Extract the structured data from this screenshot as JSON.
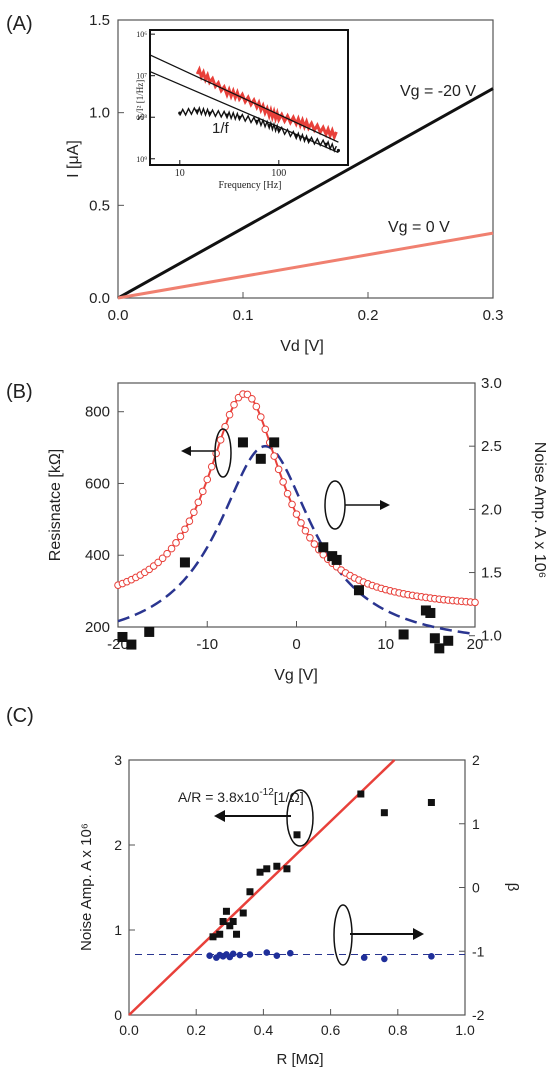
{
  "colors": {
    "black": "#111111",
    "red": "#e8403a",
    "lightred": "#f08070",
    "blue": "#1f2f9a",
    "darkblue": "#2a3590"
  },
  "chart_data": [
    {
      "panel": "(A)",
      "type": "line",
      "xlabel": "Vd [V]",
      "ylabel": "I [μA]",
      "xlim": [
        0,
        0.3
      ],
      "ylim": [
        0,
        1.5
      ],
      "xticks": [
        "0.0",
        "0.1",
        "0.2",
        "0.3"
      ],
      "yticks": [
        "0.0",
        "0.5",
        "1.0",
        "1.5"
      ],
      "series": [
        {
          "name": "Vg = -20 V",
          "color": "black",
          "x": [
            0,
            0.3
          ],
          "y": [
            0,
            1.13
          ]
        },
        {
          "name": "Vg = 0 V",
          "color": "red",
          "x": [
            0,
            0.3
          ],
          "y": [
            0,
            0.35
          ]
        }
      ],
      "inset": {
        "type": "scatter",
        "xlabel": "Frequency [Hz]",
        "ylabel": "Sᵢ/I² [1/Hz]",
        "annotation": "1/f",
        "scale": "log-log",
        "xlim": [
          5,
          500
        ],
        "xticks": [
          "10",
          "100"
        ],
        "yticks": [
          "10⁶",
          "10⁷",
          "10⁸",
          "10⁹"
        ],
        "fit_lines": [
          {
            "x": [
              5,
              400
            ],
            "y": [
              -6.5,
              -8.6
            ]
          },
          {
            "x": [
              5,
              400
            ],
            "y": [
              -6.9,
              -8.85
            ]
          }
        ],
        "red_series": {
          "x": [
            15,
            20,
            30,
            40,
            60,
            80,
            100,
            150,
            200,
            300,
            400
          ],
          "y": [
            -6.9,
            -7.1,
            -7.4,
            -7.5,
            -7.7,
            -7.9,
            -8.0,
            -8.1,
            -8.2,
            -8.35,
            -8.45
          ]
        },
        "black_series": {
          "x": [
            10,
            15,
            20,
            30,
            40,
            60,
            80,
            100,
            150,
            200,
            300,
            400
          ],
          "y": [
            -7.9,
            -7.85,
            -7.9,
            -7.95,
            -8.0,
            -8.1,
            -8.2,
            -8.3,
            -8.45,
            -8.55,
            -8.65,
            -8.8
          ]
        }
      }
    },
    {
      "panel": "(B)",
      "type": "line",
      "xlabel": "Vg [V]",
      "ylabel": "Resisnatce [kΩ]",
      "y2label": "Noise Amp. A x 10⁶",
      "xlim": [
        -20,
        20
      ],
      "ylim": [
        200,
        880
      ],
      "y2lim": [
        0.8,
        3.0
      ],
      "xticks": [
        "-20",
        "-10",
        "0",
        "10",
        "20"
      ],
      "yticks": [
        "200",
        "400",
        "600",
        "800"
      ],
      "y2ticks": [
        "1.0",
        "1.5",
        "2.0",
        "2.5",
        "3.0"
      ],
      "resistance_peak": {
        "x0": -5.8,
        "peak": 850,
        "baseline": 245,
        "gamma": 5.2
      },
      "noise_fit_peak": {
        "x0": -3.5,
        "peak": 2.5,
        "baseline": 0.9,
        "gamma": 6.5
      },
      "noise_points": {
        "x": [
          -19.5,
          -18.5,
          -16.5,
          -12.5,
          -6,
          -4,
          -2.5,
          3,
          4,
          4.5,
          7,
          12,
          14.5,
          15,
          15.5,
          16,
          17
        ],
        "y": [
          0.99,
          0.93,
          1.03,
          1.58,
          2.53,
          2.4,
          2.53,
          1.7,
          1.63,
          1.6,
          1.36,
          1.01,
          1.2,
          1.18,
          0.98,
          0.9,
          0.96
        ]
      }
    },
    {
      "panel": "(C)",
      "type": "scatter",
      "xlabel": "R [MΩ]",
      "ylabel": "Noise Amp. A x 10⁶",
      "y2label": "β",
      "xlim": [
        0,
        1.0
      ],
      "ylim": [
        0,
        3
      ],
      "y2lim": [
        -2,
        2
      ],
      "xticks": [
        "0.0",
        "0.2",
        "0.4",
        "0.6",
        "0.8",
        "1.0"
      ],
      "yticks": [
        "0",
        "1",
        "2",
        "3"
      ],
      "y2ticks": [
        "-2",
        "-1",
        "0",
        "1",
        "2"
      ],
      "annotation_prefix": "A/R = 3.8x10",
      "annotation_exp": "-12",
      "annotation_suffix": "[1/Ω]",
      "fit_line": {
        "x": [
          0,
          0.79
        ],
        "y": [
          0,
          3.0
        ]
      },
      "beta_level": -1.05,
      "noise_points": {
        "x": [
          0.25,
          0.27,
          0.28,
          0.29,
          0.3,
          0.31,
          0.32,
          0.34,
          0.36,
          0.39,
          0.41,
          0.44,
          0.47,
          0.5,
          0.69,
          0.76,
          0.9
        ],
        "y": [
          0.92,
          0.95,
          1.1,
          1.22,
          1.05,
          1.1,
          0.95,
          1.2,
          1.45,
          1.68,
          1.72,
          1.75,
          1.72,
          2.12,
          2.6,
          2.38,
          2.5
        ]
      },
      "beta_points": {
        "x": [
          0.24,
          0.26,
          0.27,
          0.28,
          0.29,
          0.3,
          0.31,
          0.33,
          0.36,
          0.41,
          0.44,
          0.48,
          0.7,
          0.76,
          0.9
        ],
        "y": [
          -1.07,
          -1.1,
          -1.06,
          -1.08,
          -1.05,
          -1.09,
          -1.04,
          -1.06,
          -1.05,
          -1.02,
          -1.07,
          -1.03,
          -1.1,
          -1.12,
          -1.08
        ]
      }
    }
  ]
}
